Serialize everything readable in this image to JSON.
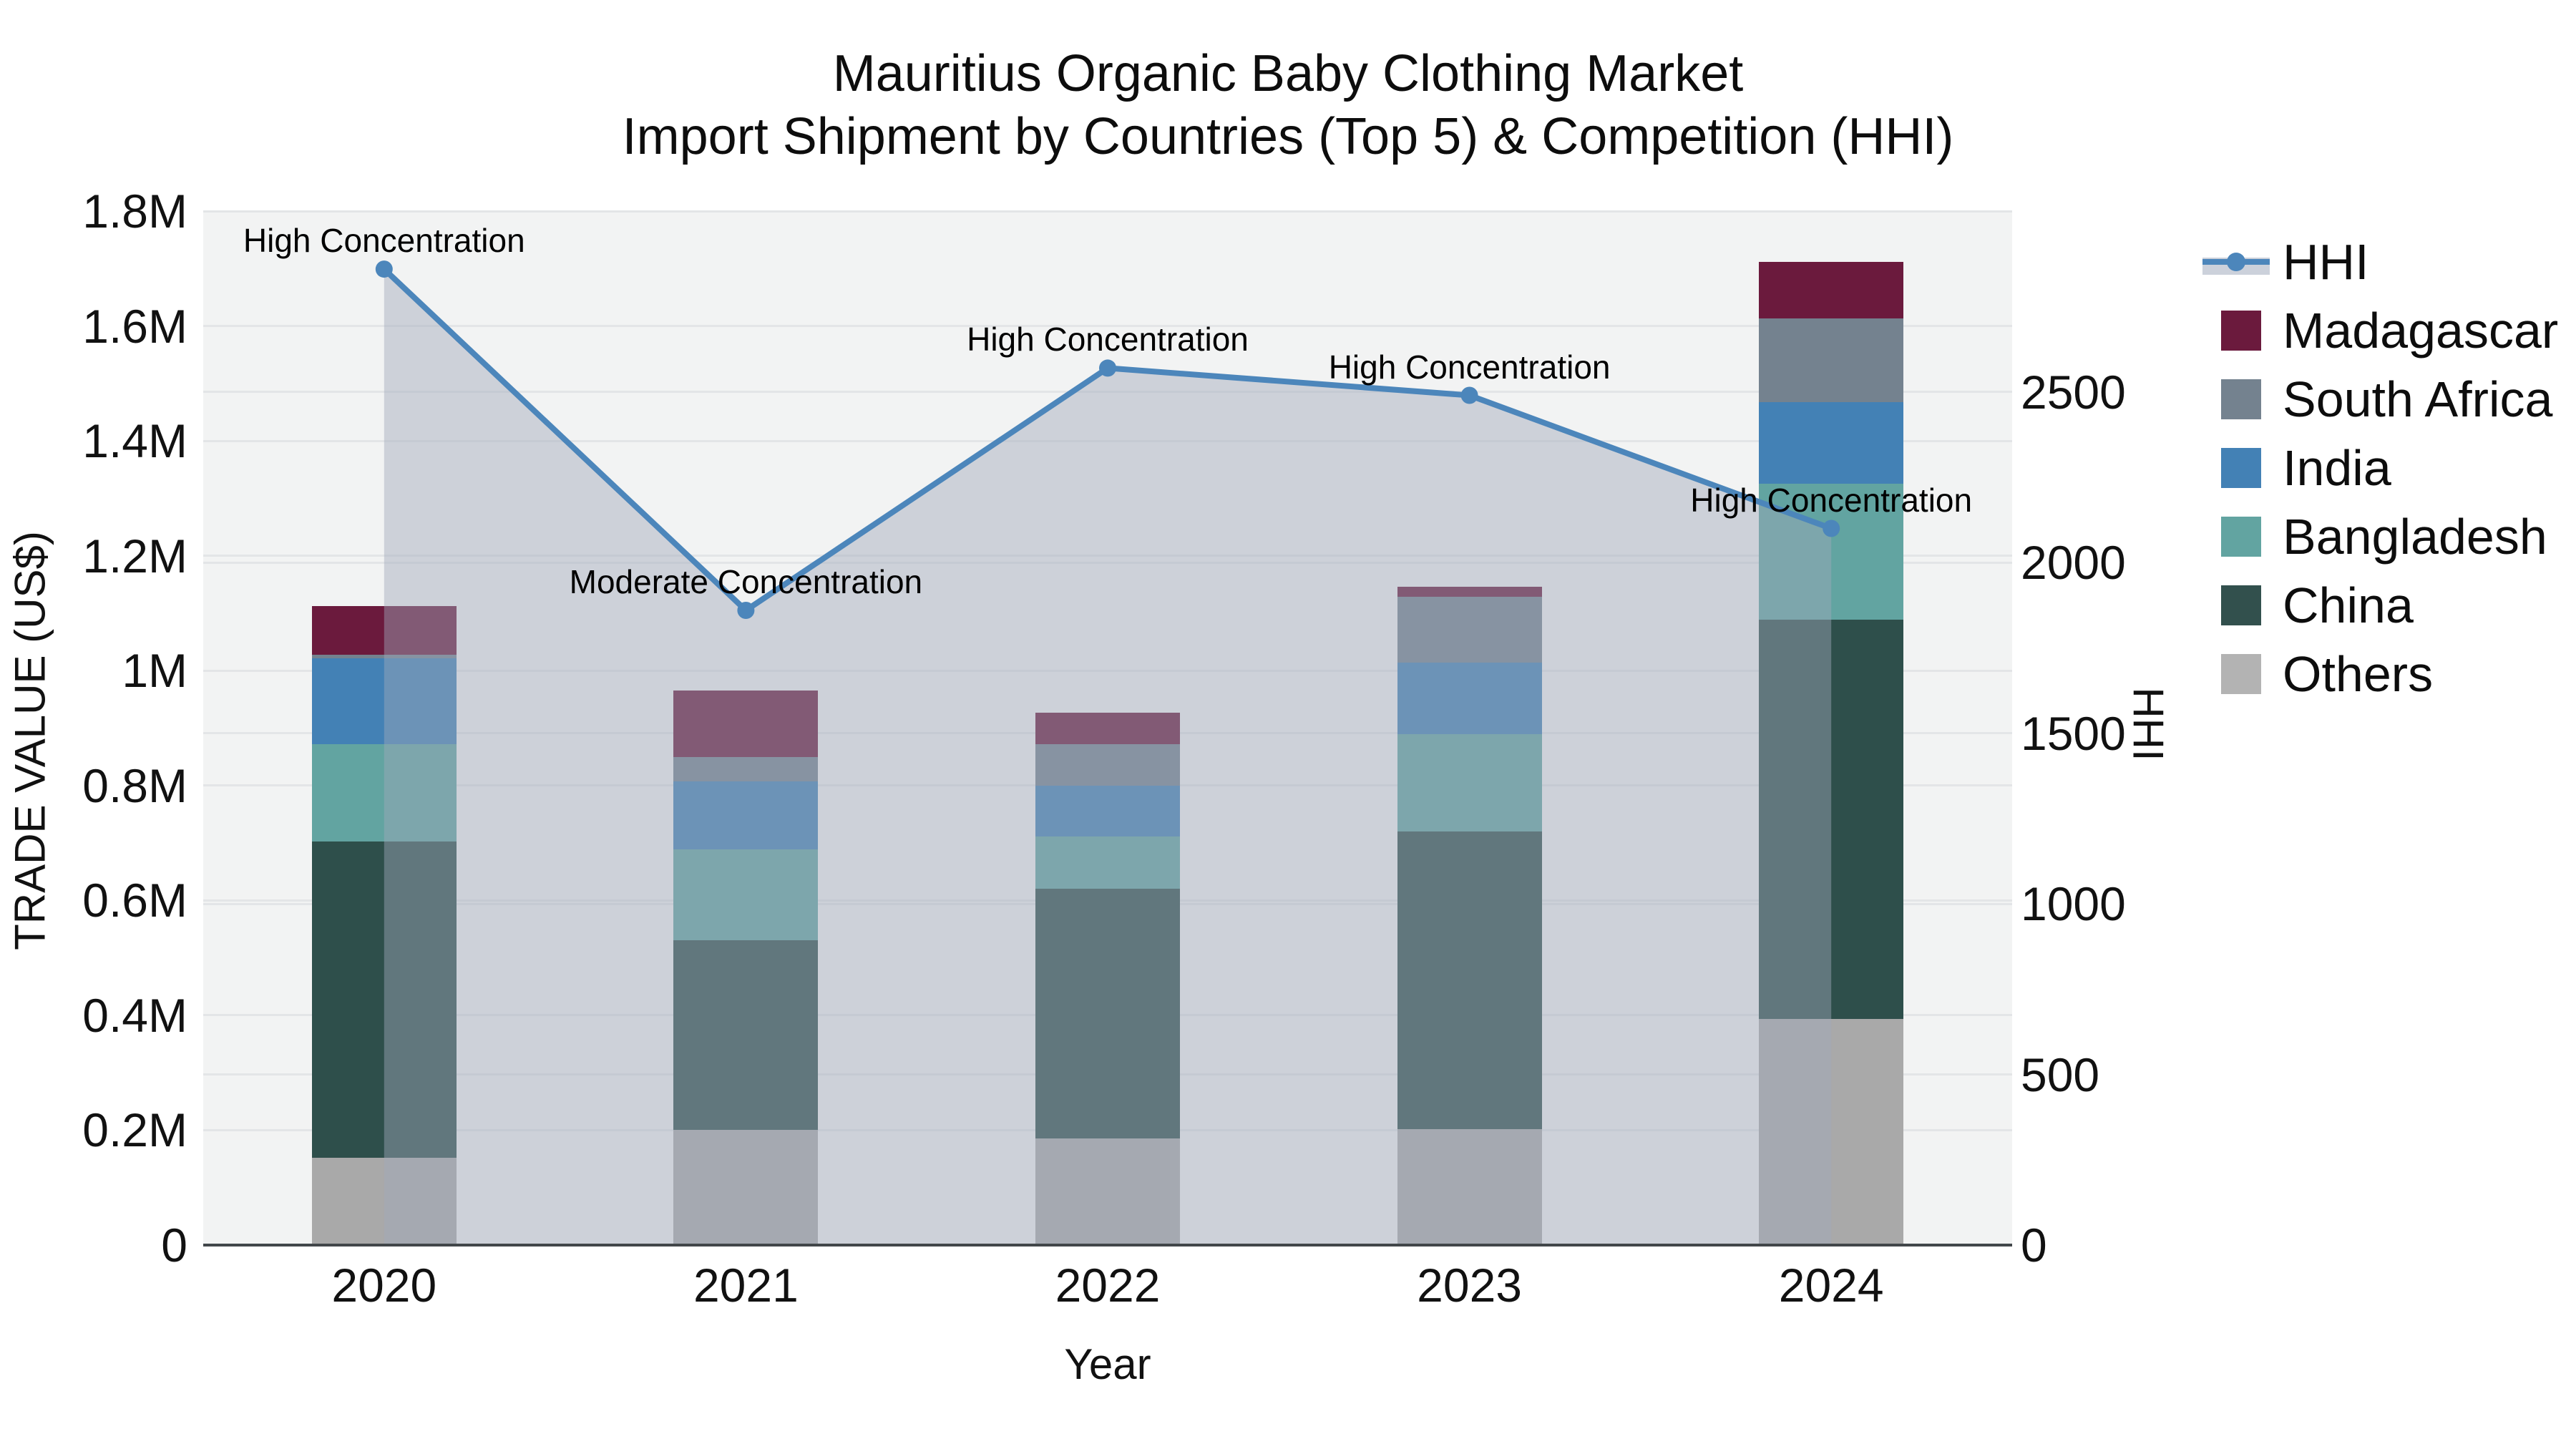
{
  "title": {
    "line1": "Mauritius Organic Baby Clothing Market",
    "line2": "Import Shipment by Countries (Top 5) & Competition (HHI)"
  },
  "axes": {
    "x": {
      "title": "Year"
    },
    "y_left": {
      "title": "TRADE VALUE (US$)",
      "ticks": [
        {
          "label": "0",
          "value": 0
        },
        {
          "label": "0.2M",
          "value": 200000
        },
        {
          "label": "0.4M",
          "value": 400000
        },
        {
          "label": "0.6M",
          "value": 600000
        },
        {
          "label": "0.8M",
          "value": 800000
        },
        {
          "label": "1M",
          "value": 1000000
        },
        {
          "label": "1.2M",
          "value": 1200000
        },
        {
          "label": "1.4M",
          "value": 1400000
        },
        {
          "label": "1.6M",
          "value": 1600000
        },
        {
          "label": "1.8M",
          "value": 1800000
        }
      ]
    },
    "y_right": {
      "title": "HHI",
      "ticks": [
        {
          "label": "0",
          "value": 0
        },
        {
          "label": "500",
          "value": 500
        },
        {
          "label": "1000",
          "value": 1000
        },
        {
          "label": "1500",
          "value": 1500
        },
        {
          "label": "2000",
          "value": 2000
        },
        {
          "label": "2500",
          "value": 2500
        }
      ]
    }
  },
  "legend": {
    "items": [
      {
        "label": "HHI",
        "type": "line",
        "color": "#4c86bb"
      },
      {
        "label": "Madagascar",
        "type": "square",
        "color": "#6b1a3d"
      },
      {
        "label": "South Africa",
        "type": "square",
        "color": "#74828f"
      },
      {
        "label": "India",
        "type": "square",
        "color": "#4381b5"
      },
      {
        "label": "Bangladesh",
        "type": "square",
        "color": "#62a4a1"
      },
      {
        "label": "China",
        "type": "square",
        "color": "#32504d"
      },
      {
        "label": "Others",
        "type": "square",
        "color": "#b3b3b3"
      }
    ]
  },
  "chart_data": {
    "type": "bar",
    "subtype": "stacked-bars-with-line-overlay",
    "categories": [
      "2020",
      "2021",
      "2022",
      "2023",
      "2024"
    ],
    "value_axis_max": 1800000,
    "hhi_axis_max": 3030,
    "series": [
      {
        "name": "Others",
        "color": "#a9a9a9",
        "values": [
          152500,
          200000,
          186000,
          202000,
          394000
        ]
      },
      {
        "name": "China",
        "color": "#2e4f4b",
        "values": [
          550000,
          331000,
          434000,
          518000,
          695000
        ]
      },
      {
        "name": "Bangladesh",
        "color": "#62a4a1",
        "values": [
          170000,
          157500,
          91000,
          170000,
          236000
        ]
      },
      {
        "name": "India",
        "color": "#4381b5",
        "values": [
          149000,
          119000,
          88500,
          123500,
          142000
        ]
      },
      {
        "name": "South Africa",
        "color": "#74828f",
        "values": [
          6000,
          42500,
          73000,
          115000,
          146000
        ]
      },
      {
        "name": "Madagascar",
        "color": "#6b1a3d",
        "values": [
          84500,
          116000,
          54500,
          18000,
          99000
        ]
      }
    ],
    "line": {
      "name": "HHI",
      "values": [
        2860,
        1860,
        2570,
        2490,
        2100
      ],
      "color": "#4c86bb",
      "area_color": "rgba(160,168,186,0.45)"
    },
    "annotations": [
      "High Concentration",
      "Moderate Concentration",
      "High Concentration",
      "High Concentration",
      "High Concentration"
    ],
    "bar_totals_usd": [
      1112000,
      966000,
      927000,
      1146500,
      1712000
    ],
    "layout": {
      "legend_position": "right",
      "grid": true,
      "plot_bg": "#f2f3f3"
    }
  }
}
